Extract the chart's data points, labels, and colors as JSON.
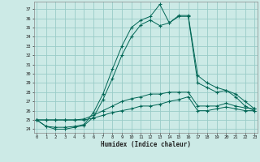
{
  "xlabel": "Humidex (Indice chaleur)",
  "bg_color": "#cceae6",
  "grid_color": "#99ccc7",
  "line_color": "#006655",
  "x_ticks": [
    0,
    1,
    2,
    3,
    4,
    5,
    6,
    7,
    8,
    9,
    10,
    11,
    12,
    13,
    14,
    15,
    16,
    17,
    18,
    19,
    20,
    21,
    22,
    23
  ],
  "y_ticks": [
    24,
    25,
    26,
    27,
    28,
    29,
    30,
    31,
    32,
    33,
    34,
    35,
    36,
    37
  ],
  "ylim": [
    23.6,
    37.8
  ],
  "xlim": [
    -0.3,
    23.3
  ],
  "series": [
    [
      25.0,
      24.3,
      24.2,
      24.2,
      24.3,
      24.5,
      25.8,
      27.8,
      30.5,
      33.0,
      35.0,
      35.8,
      36.2,
      37.5,
      35.5,
      36.3,
      36.3,
      29.8,
      29.0,
      28.5,
      28.2,
      27.5,
      26.5,
      26.0
    ],
    [
      25.0,
      24.3,
      24.0,
      24.0,
      24.2,
      24.4,
      25.3,
      27.2,
      29.5,
      32.0,
      34.0,
      35.3,
      35.8,
      35.2,
      35.5,
      36.2,
      36.2,
      29.0,
      28.5,
      28.0,
      28.2,
      27.8,
      27.0,
      26.2
    ],
    [
      25.0,
      25.0,
      25.0,
      25.0,
      25.0,
      25.1,
      25.5,
      26.0,
      26.5,
      27.0,
      27.3,
      27.5,
      27.8,
      27.8,
      28.0,
      28.0,
      28.0,
      26.5,
      26.5,
      26.5,
      26.8,
      26.5,
      26.3,
      26.2
    ],
    [
      25.0,
      25.0,
      25.0,
      25.0,
      25.0,
      25.0,
      25.2,
      25.5,
      25.8,
      26.0,
      26.2,
      26.5,
      26.5,
      26.7,
      27.0,
      27.2,
      27.5,
      26.0,
      26.0,
      26.2,
      26.4,
      26.2,
      26.0,
      26.0
    ]
  ]
}
